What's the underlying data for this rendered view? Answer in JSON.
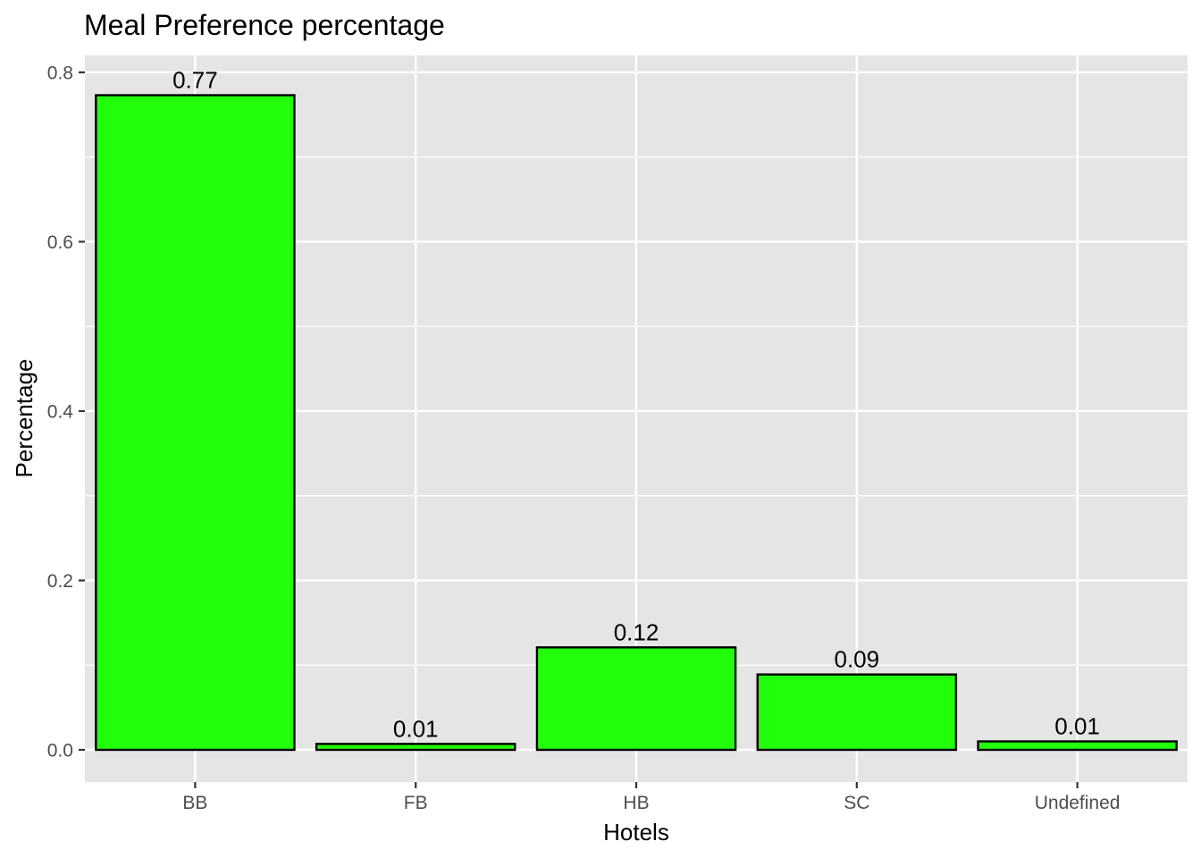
{
  "chart_data": {
    "type": "bar",
    "title": "Meal Preference percentage",
    "xlabel": "Hotels",
    "ylabel": "Percentage",
    "categories": [
      "BB",
      "FB",
      "HB",
      "SC",
      "Undefined"
    ],
    "values": [
      0.773,
      0.007,
      0.121,
      0.089,
      0.01
    ],
    "data_labels": [
      "0.77",
      "0.01",
      "0.12",
      "0.09",
      "0.01"
    ],
    "ylim": [
      -0.038,
      0.82
    ],
    "y_ticks": [
      0.0,
      0.2,
      0.4,
      0.6,
      0.8
    ],
    "y_tick_labels": [
      "0.0",
      "0.2",
      "0.4",
      "0.6",
      "0.8"
    ],
    "grid": true,
    "legend": "none",
    "colors": {
      "bar_fill": "#22ff0a",
      "bar_stroke": "#000000",
      "panel_background": "#e5e5e5",
      "grid": "#ffffff"
    }
  }
}
